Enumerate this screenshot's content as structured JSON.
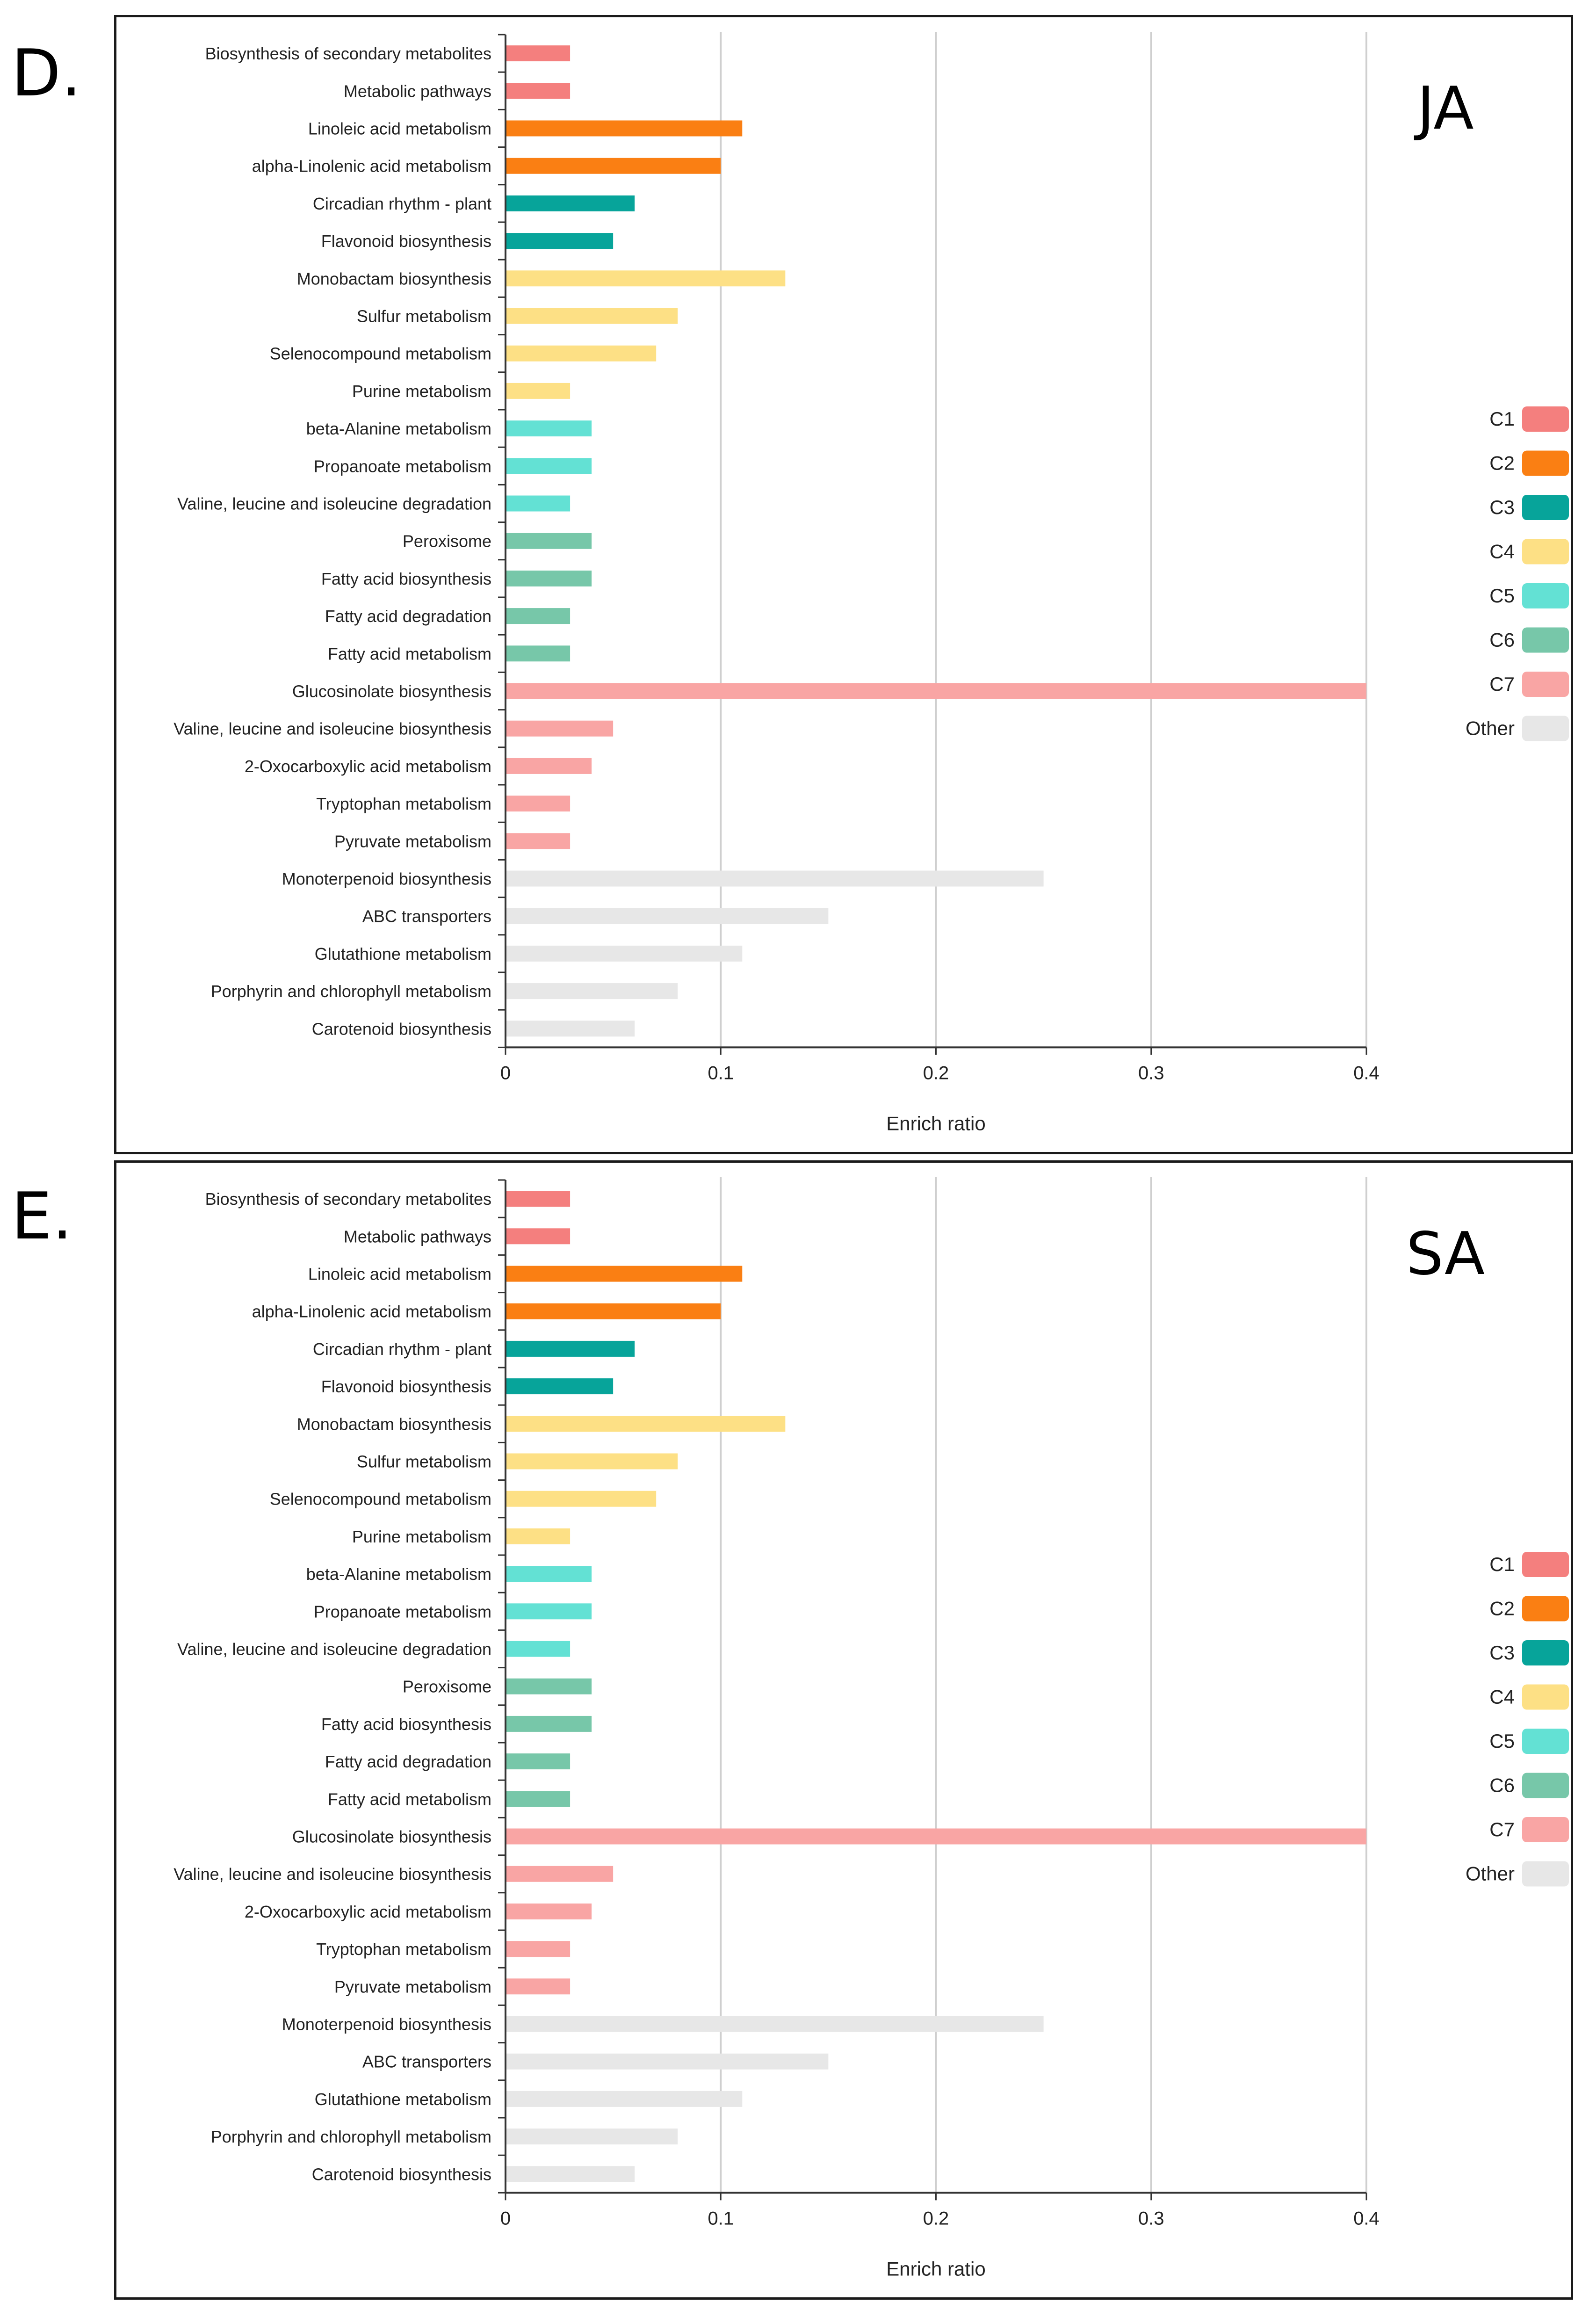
{
  "chart_data": [
    {
      "panel_letter": "D.",
      "condition_label": "JA",
      "type": "bar",
      "orientation": "horizontal",
      "xlabel": "Enrich ratio",
      "xlim": [
        0,
        0.4
      ],
      "xticks": [
        "0",
        "0.1",
        "0.2",
        "0.3",
        "0.4"
      ],
      "legend": [
        {
          "name": "C1",
          "color": "#f47f7e"
        },
        {
          "name": "C2",
          "color": "#fa7f13"
        },
        {
          "name": "C3",
          "color": "#07a49a"
        },
        {
          "name": "C4",
          "color": "#fde085"
        },
        {
          "name": "C5",
          "color": "#63e1d4"
        },
        {
          "name": "C6",
          "color": "#77c7a9"
        },
        {
          "name": "C7",
          "color": "#f9a5a4"
        },
        {
          "name": "Other",
          "color": "#e7e7e7"
        }
      ],
      "categories": [
        {
          "label": "Biosynthesis of secondary metabolites",
          "value": 0.03,
          "group": "C1"
        },
        {
          "label": "Metabolic pathways",
          "value": 0.03,
          "group": "C1"
        },
        {
          "label": "Linoleic acid metabolism",
          "value": 0.11,
          "group": "C2"
        },
        {
          "label": "alpha-Linolenic acid metabolism",
          "value": 0.1,
          "group": "C2"
        },
        {
          "label": "Circadian rhythm - plant",
          "value": 0.06,
          "group": "C3"
        },
        {
          "label": "Flavonoid biosynthesis",
          "value": 0.05,
          "group": "C3"
        },
        {
          "label": "Monobactam biosynthesis",
          "value": 0.13,
          "group": "C4"
        },
        {
          "label": "Sulfur metabolism",
          "value": 0.08,
          "group": "C4"
        },
        {
          "label": "Selenocompound metabolism",
          "value": 0.07,
          "group": "C4"
        },
        {
          "label": "Purine metabolism",
          "value": 0.03,
          "group": "C4"
        },
        {
          "label": "beta-Alanine metabolism",
          "value": 0.04,
          "group": "C5"
        },
        {
          "label": "Propanoate metabolism",
          "value": 0.04,
          "group": "C5"
        },
        {
          "label": "Valine, leucine and isoleucine degradation",
          "value": 0.03,
          "group": "C5"
        },
        {
          "label": "Peroxisome",
          "value": 0.04,
          "group": "C6"
        },
        {
          "label": "Fatty acid biosynthesis",
          "value": 0.04,
          "group": "C6"
        },
        {
          "label": "Fatty acid degradation",
          "value": 0.03,
          "group": "C6"
        },
        {
          "label": "Fatty acid metabolism",
          "value": 0.03,
          "group": "C6"
        },
        {
          "label": "Glucosinolate biosynthesis",
          "value": 0.4,
          "group": "C7"
        },
        {
          "label": "Valine, leucine and isoleucine biosynthesis",
          "value": 0.05,
          "group": "C7"
        },
        {
          "label": "2-Oxocarboxylic acid metabolism",
          "value": 0.04,
          "group": "C7"
        },
        {
          "label": "Tryptophan metabolism",
          "value": 0.03,
          "group": "C7"
        },
        {
          "label": "Pyruvate metabolism",
          "value": 0.03,
          "group": "C7"
        },
        {
          "label": "Monoterpenoid biosynthesis",
          "value": 0.25,
          "group": "Other"
        },
        {
          "label": "ABC transporters",
          "value": 0.15,
          "group": "Other"
        },
        {
          "label": "Glutathione metabolism",
          "value": 0.11,
          "group": "Other"
        },
        {
          "label": "Porphyrin and chlorophyll metabolism",
          "value": 0.08,
          "group": "Other"
        },
        {
          "label": "Carotenoid biosynthesis",
          "value": 0.06,
          "group": "Other"
        }
      ]
    },
    {
      "panel_letter": "E.",
      "condition_label": "SA",
      "type": "bar",
      "orientation": "horizontal",
      "xlabel": "Enrich ratio",
      "xlim": [
        0,
        0.4
      ],
      "xticks": [
        "0",
        "0.1",
        "0.2",
        "0.3",
        "0.4"
      ],
      "legend": [
        {
          "name": "C1",
          "color": "#f47f7e"
        },
        {
          "name": "C2",
          "color": "#fa7f13"
        },
        {
          "name": "C3",
          "color": "#07a49a"
        },
        {
          "name": "C4",
          "color": "#fde085"
        },
        {
          "name": "C5",
          "color": "#63e1d4"
        },
        {
          "name": "C6",
          "color": "#77c7a9"
        },
        {
          "name": "C7",
          "color": "#f9a5a4"
        },
        {
          "name": "Other",
          "color": "#e7e7e7"
        }
      ],
      "categories": [
        {
          "label": "Biosynthesis of secondary metabolites",
          "value": 0.03,
          "group": "C1"
        },
        {
          "label": "Metabolic pathways",
          "value": 0.03,
          "group": "C1"
        },
        {
          "label": "Linoleic acid metabolism",
          "value": 0.11,
          "group": "C2"
        },
        {
          "label": "alpha-Linolenic acid metabolism",
          "value": 0.1,
          "group": "C2"
        },
        {
          "label": "Circadian rhythm - plant",
          "value": 0.06,
          "group": "C3"
        },
        {
          "label": "Flavonoid biosynthesis",
          "value": 0.05,
          "group": "C3"
        },
        {
          "label": "Monobactam biosynthesis",
          "value": 0.13,
          "group": "C4"
        },
        {
          "label": "Sulfur metabolism",
          "value": 0.08,
          "group": "C4"
        },
        {
          "label": "Selenocompound metabolism",
          "value": 0.07,
          "group": "C4"
        },
        {
          "label": "Purine metabolism",
          "value": 0.03,
          "group": "C4"
        },
        {
          "label": "beta-Alanine metabolism",
          "value": 0.04,
          "group": "C5"
        },
        {
          "label": "Propanoate metabolism",
          "value": 0.04,
          "group": "C5"
        },
        {
          "label": "Valine, leucine and isoleucine degradation",
          "value": 0.03,
          "group": "C5"
        },
        {
          "label": "Peroxisome",
          "value": 0.04,
          "group": "C6"
        },
        {
          "label": "Fatty acid biosynthesis",
          "value": 0.04,
          "group": "C6"
        },
        {
          "label": "Fatty acid degradation",
          "value": 0.03,
          "group": "C6"
        },
        {
          "label": "Fatty acid metabolism",
          "value": 0.03,
          "group": "C6"
        },
        {
          "label": "Glucosinolate biosynthesis",
          "value": 0.4,
          "group": "C7"
        },
        {
          "label": "Valine, leucine and isoleucine biosynthesis",
          "value": 0.05,
          "group": "C7"
        },
        {
          "label": "2-Oxocarboxylic acid metabolism",
          "value": 0.04,
          "group": "C7"
        },
        {
          "label": "Tryptophan metabolism",
          "value": 0.03,
          "group": "C7"
        },
        {
          "label": "Pyruvate metabolism",
          "value": 0.03,
          "group": "C7"
        },
        {
          "label": "Monoterpenoid biosynthesis",
          "value": 0.25,
          "group": "Other"
        },
        {
          "label": "ABC transporters",
          "value": 0.15,
          "group": "Other"
        },
        {
          "label": "Glutathione metabolism",
          "value": 0.11,
          "group": "Other"
        },
        {
          "label": "Porphyrin and chlorophyll metabolism",
          "value": 0.08,
          "group": "Other"
        },
        {
          "label": "Carotenoid biosynthesis",
          "value": 0.06,
          "group": "Other"
        }
      ]
    }
  ]
}
